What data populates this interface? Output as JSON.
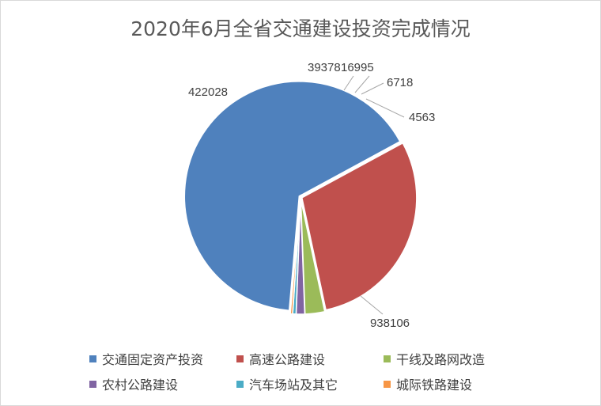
{
  "chart_data": {
    "type": "pie",
    "title": "2020年6月全省交通建设投资完成情况",
    "categories": [
      "交通固定资产投资",
      "高速公路建设",
      "干线及路网改造",
      "农村公路建设",
      "汽车场站及其它",
      "城际铁路建设"
    ],
    "values": [
      938106,
      422028,
      39378,
      16995,
      6718,
      4563
    ],
    "data_labels": [
      "938106",
      "422028",
      "39378",
      "16995",
      "6718",
      "4563"
    ],
    "colors": [
      "#4f81bd",
      "#c0504d",
      "#9bbb59",
      "#8064a2",
      "#4bacc6",
      "#f79646"
    ],
    "legend_position": "bottom"
  }
}
